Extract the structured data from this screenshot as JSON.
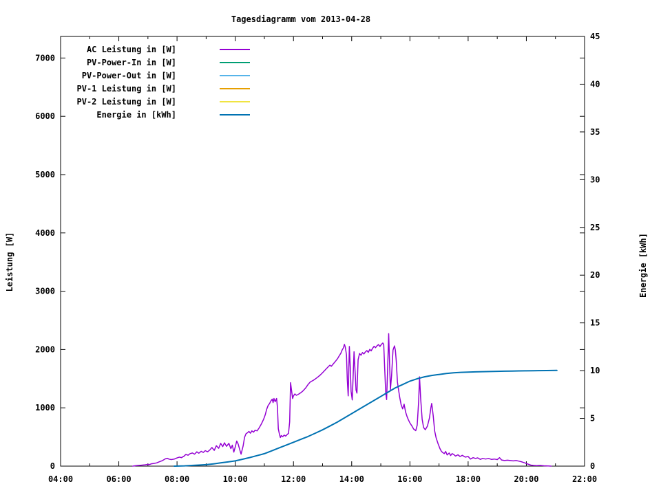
{
  "title": "Tagesdiagramm vom 2013-04-28",
  "chart_data": {
    "type": "line",
    "title": "Tagesdiagramm vom 2013-04-28",
    "xlabel": "",
    "x_axis": {
      "unit": "time",
      "range_hours": [
        4,
        22
      ],
      "major_tick_labels": [
        "04:00",
        "06:00",
        "08:00",
        "10:00",
        "12:00",
        "14:00",
        "16:00",
        "18:00",
        "20:00",
        "22:00"
      ],
      "major_tick_hours": [
        4,
        6,
        8,
        10,
        12,
        14,
        16,
        18,
        20,
        22
      ],
      "minor_tick_hours": [
        5,
        7,
        9,
        11,
        13,
        15,
        17,
        19,
        21
      ]
    },
    "y_axis_left": {
      "label": "Leistung [W]",
      "range": [
        0,
        7370
      ],
      "ticks": [
        0,
        1000,
        2000,
        3000,
        4000,
        5000,
        6000,
        7000
      ]
    },
    "y_axis_right": {
      "label": "Energie [kWh]",
      "range": [
        0,
        45
      ],
      "ticks": [
        0,
        5,
        10,
        15,
        20,
        25,
        30,
        35,
        40,
        45
      ]
    },
    "grid": false,
    "legend_position": "top-left-inside",
    "series": [
      {
        "name": "AC Leistung in [W]",
        "color": "#9400D3",
        "axis": "left",
        "stroke_width": 1.5,
        "points": [
          [
            6.48,
            0
          ],
          [
            6.6,
            8
          ],
          [
            6.75,
            15
          ],
          [
            6.9,
            22
          ],
          [
            7.0,
            30
          ],
          [
            7.05,
            26
          ],
          [
            7.12,
            40
          ],
          [
            7.2,
            46
          ],
          [
            7.3,
            56
          ],
          [
            7.4,
            75
          ],
          [
            7.5,
            95
          ],
          [
            7.6,
            125
          ],
          [
            7.67,
            135
          ],
          [
            7.72,
            120
          ],
          [
            7.8,
            112
          ],
          [
            7.9,
            120
          ],
          [
            8.0,
            140
          ],
          [
            8.08,
            155
          ],
          [
            8.15,
            145
          ],
          [
            8.25,
            175
          ],
          [
            8.3,
            200
          ],
          [
            8.38,
            188
          ],
          [
            8.45,
            215
          ],
          [
            8.53,
            225
          ],
          [
            8.6,
            205
          ],
          [
            8.68,
            245
          ],
          [
            8.75,
            222
          ],
          [
            8.83,
            255
          ],
          [
            8.9,
            235
          ],
          [
            8.97,
            265
          ],
          [
            9.05,
            245
          ],
          [
            9.13,
            280
          ],
          [
            9.2,
            320
          ],
          [
            9.28,
            270
          ],
          [
            9.35,
            350
          ],
          [
            9.43,
            305
          ],
          [
            9.5,
            390
          ],
          [
            9.57,
            335
          ],
          [
            9.63,
            400
          ],
          [
            9.7,
            340
          ],
          [
            9.78,
            390
          ],
          [
            9.85,
            300
          ],
          [
            9.9,
            360
          ],
          [
            9.95,
            240
          ],
          [
            10.0,
            330
          ],
          [
            10.05,
            430
          ],
          [
            10.1,
            380
          ],
          [
            10.15,
            290
          ],
          [
            10.2,
            205
          ],
          [
            10.27,
            345
          ],
          [
            10.32,
            495
          ],
          [
            10.37,
            555
          ],
          [
            10.42,
            572
          ],
          [
            10.47,
            595
          ],
          [
            10.52,
            565
          ],
          [
            10.57,
            605
          ],
          [
            10.63,
            582
          ],
          [
            10.68,
            615
          ],
          [
            10.75,
            605
          ],
          [
            10.82,
            655
          ],
          [
            10.9,
            725
          ],
          [
            10.97,
            800
          ],
          [
            11.03,
            880
          ],
          [
            11.08,
            975
          ],
          [
            11.13,
            1040
          ],
          [
            11.18,
            1075
          ],
          [
            11.22,
            1115
          ],
          [
            11.27,
            1150
          ],
          [
            11.3,
            1090
          ],
          [
            11.33,
            1160
          ],
          [
            11.37,
            1105
          ],
          [
            11.42,
            1160
          ],
          [
            11.45,
            1000
          ],
          [
            11.48,
            640
          ],
          [
            11.52,
            545
          ],
          [
            11.55,
            490
          ],
          [
            11.58,
            525
          ],
          [
            11.63,
            505
          ],
          [
            11.68,
            532
          ],
          [
            11.73,
            515
          ],
          [
            11.78,
            540
          ],
          [
            11.83,
            562
          ],
          [
            11.87,
            760
          ],
          [
            11.9,
            1432
          ],
          [
            11.93,
            1310
          ],
          [
            11.97,
            1160
          ],
          [
            12.0,
            1205
          ],
          [
            12.05,
            1238
          ],
          [
            12.1,
            1215
          ],
          [
            12.17,
            1232
          ],
          [
            12.25,
            1258
          ],
          [
            12.33,
            1292
          ],
          [
            12.42,
            1342
          ],
          [
            12.5,
            1400
          ],
          [
            12.58,
            1445
          ],
          [
            12.67,
            1468
          ],
          [
            12.75,
            1495
          ],
          [
            12.83,
            1525
          ],
          [
            12.92,
            1562
          ],
          [
            13.0,
            1602
          ],
          [
            13.08,
            1645
          ],
          [
            13.17,
            1692
          ],
          [
            13.25,
            1732
          ],
          [
            13.3,
            1712
          ],
          [
            13.38,
            1762
          ],
          [
            13.45,
            1802
          ],
          [
            13.52,
            1848
          ],
          [
            13.58,
            1898
          ],
          [
            13.63,
            1938
          ],
          [
            13.67,
            1988
          ],
          [
            13.72,
            2032
          ],
          [
            13.75,
            2088
          ],
          [
            13.78,
            2042
          ],
          [
            13.82,
            1908
          ],
          [
            13.85,
            1480
          ],
          [
            13.88,
            1205
          ],
          [
            13.9,
            1650
          ],
          [
            13.92,
            2052
          ],
          [
            13.95,
            1705
          ],
          [
            13.98,
            1282
          ],
          [
            14.02,
            1135
          ],
          [
            14.05,
            1552
          ],
          [
            14.08,
            1962
          ],
          [
            14.12,
            1582
          ],
          [
            14.15,
            1305
          ],
          [
            14.18,
            1252
          ],
          [
            14.22,
            1825
          ],
          [
            14.27,
            1932
          ],
          [
            14.32,
            1902
          ],
          [
            14.37,
            1948
          ],
          [
            14.42,
            1925
          ],
          [
            14.47,
            1958
          ],
          [
            14.52,
            1982
          ],
          [
            14.57,
            1952
          ],
          [
            14.62,
            2002
          ],
          [
            14.67,
            1978
          ],
          [
            14.72,
            2022
          ],
          [
            14.77,
            2055
          ],
          [
            14.82,
            2032
          ],
          [
            14.87,
            2065
          ],
          [
            14.92,
            2085
          ],
          [
            14.97,
            2052
          ],
          [
            15.02,
            2088
          ],
          [
            15.07,
            2112
          ],
          [
            15.1,
            2085
          ],
          [
            15.13,
            1705
          ],
          [
            15.17,
            1262
          ],
          [
            15.2,
            1142
          ],
          [
            15.23,
            1605
          ],
          [
            15.27,
            2272
          ],
          [
            15.3,
            1805
          ],
          [
            15.33,
            1312
          ],
          [
            15.37,
            1552
          ],
          [
            15.42,
            1992
          ],
          [
            15.47,
            2062
          ],
          [
            15.5,
            1992
          ],
          [
            15.53,
            1805
          ],
          [
            15.57,
            1442
          ],
          [
            15.6,
            1342
          ],
          [
            15.65,
            1182
          ],
          [
            15.7,
            1052
          ],
          [
            15.75,
            982
          ],
          [
            15.8,
            1062
          ],
          [
            15.85,
            932
          ],
          [
            15.9,
            852
          ],
          [
            15.95,
            792
          ],
          [
            16.0,
            742
          ],
          [
            16.07,
            688
          ],
          [
            16.13,
            635
          ],
          [
            16.2,
            608
          ],
          [
            16.25,
            702
          ],
          [
            16.3,
            1105
          ],
          [
            16.33,
            1532
          ],
          [
            16.37,
            1152
          ],
          [
            16.42,
            805
          ],
          [
            16.47,
            662
          ],
          [
            16.53,
            625
          ],
          [
            16.6,
            685
          ],
          [
            16.67,
            825
          ],
          [
            16.72,
            1002
          ],
          [
            16.75,
            1075
          ],
          [
            16.8,
            862
          ],
          [
            16.85,
            602
          ],
          [
            16.9,
            485
          ],
          [
            16.97,
            382
          ],
          [
            17.03,
            302
          ],
          [
            17.08,
            255
          ],
          [
            17.13,
            232
          ],
          [
            17.18,
            215
          ],
          [
            17.23,
            252
          ],
          [
            17.28,
            192
          ],
          [
            17.35,
            225
          ],
          [
            17.4,
            182
          ],
          [
            17.45,
            215
          ],
          [
            17.5,
            202
          ],
          [
            17.57,
            172
          ],
          [
            17.65,
            195
          ],
          [
            17.72,
            165
          ],
          [
            17.8,
            185
          ],
          [
            17.9,
            155
          ],
          [
            18.0,
            165
          ],
          [
            18.08,
            122
          ],
          [
            18.17,
            145
          ],
          [
            18.25,
            132
          ],
          [
            18.33,
            142
          ],
          [
            18.42,
            115
          ],
          [
            18.5,
            132
          ],
          [
            18.6,
            122
          ],
          [
            18.7,
            132
          ],
          [
            18.8,
            115
          ],
          [
            18.9,
            122
          ],
          [
            19.0,
            112
          ],
          [
            19.08,
            145
          ],
          [
            19.15,
            105
          ],
          [
            19.25,
            95
          ],
          [
            19.35,
            102
          ],
          [
            19.45,
            95
          ],
          [
            19.55,
            90
          ],
          [
            19.65,
            95
          ],
          [
            19.75,
            85
          ],
          [
            19.85,
            72
          ],
          [
            19.95,
            55
          ],
          [
            20.05,
            35
          ],
          [
            20.15,
            18
          ],
          [
            20.25,
            12
          ],
          [
            20.35,
            8
          ],
          [
            20.48,
            12
          ],
          [
            20.6,
            6
          ],
          [
            20.75,
            4
          ],
          [
            20.85,
            0
          ]
        ]
      },
      {
        "name": "PV-Power-In in [W]",
        "color": "#009E73",
        "axis": "left",
        "stroke_width": 1.5,
        "points": []
      },
      {
        "name": "PV-Power-Out in [W]",
        "color": "#56B4E9",
        "axis": "left",
        "stroke_width": 1.5,
        "points": []
      },
      {
        "name": "PV-1 Leistung in [W]",
        "color": "#E69F00",
        "axis": "left",
        "stroke_width": 1.5,
        "points": []
      },
      {
        "name": "PV-2 Leistung in [W]",
        "color": "#F0E442",
        "axis": "left",
        "stroke_width": 1.5,
        "points": []
      },
      {
        "name": "Energie in [kWh]",
        "color": "#0072B2",
        "axis": "right",
        "stroke_width": 2,
        "points": [
          [
            7.9,
            0
          ],
          [
            8.25,
            0.03
          ],
          [
            8.5,
            0.07
          ],
          [
            8.75,
            0.11
          ],
          [
            9.0,
            0.15
          ],
          [
            9.25,
            0.24
          ],
          [
            9.5,
            0.34
          ],
          [
            9.75,
            0.44
          ],
          [
            10.0,
            0.55
          ],
          [
            10.25,
            0.72
          ],
          [
            10.5,
            0.9
          ],
          [
            10.75,
            1.1
          ],
          [
            11.0,
            1.3
          ],
          [
            11.25,
            1.6
          ],
          [
            11.5,
            1.9
          ],
          [
            11.75,
            2.2
          ],
          [
            12.0,
            2.5
          ],
          [
            12.25,
            2.8
          ],
          [
            12.5,
            3.1
          ],
          [
            12.75,
            3.45
          ],
          [
            13.0,
            3.8
          ],
          [
            13.25,
            4.2
          ],
          [
            13.5,
            4.6
          ],
          [
            13.75,
            5.05
          ],
          [
            14.0,
            5.5
          ],
          [
            14.25,
            5.95
          ],
          [
            14.5,
            6.4
          ],
          [
            14.75,
            6.85
          ],
          [
            15.0,
            7.3
          ],
          [
            15.25,
            7.75
          ],
          [
            15.5,
            8.2
          ],
          [
            15.75,
            8.55
          ],
          [
            16.0,
            8.9
          ],
          [
            16.25,
            9.15
          ],
          [
            16.5,
            9.35
          ],
          [
            16.75,
            9.5
          ],
          [
            17.0,
            9.6
          ],
          [
            17.25,
            9.7
          ],
          [
            17.5,
            9.78
          ],
          [
            17.75,
            9.82
          ],
          [
            18.0,
            9.85
          ],
          [
            18.25,
            9.87
          ],
          [
            18.5,
            9.89
          ],
          [
            18.75,
            9.91
          ],
          [
            19.0,
            9.93
          ],
          [
            19.25,
            9.94
          ],
          [
            19.5,
            9.95
          ],
          [
            19.75,
            9.97
          ],
          [
            20.0,
            9.98
          ],
          [
            20.25,
            9.99
          ],
          [
            20.4,
            10.0
          ],
          [
            20.7,
            10.01
          ],
          [
            21.05,
            10.02
          ]
        ]
      }
    ]
  }
}
